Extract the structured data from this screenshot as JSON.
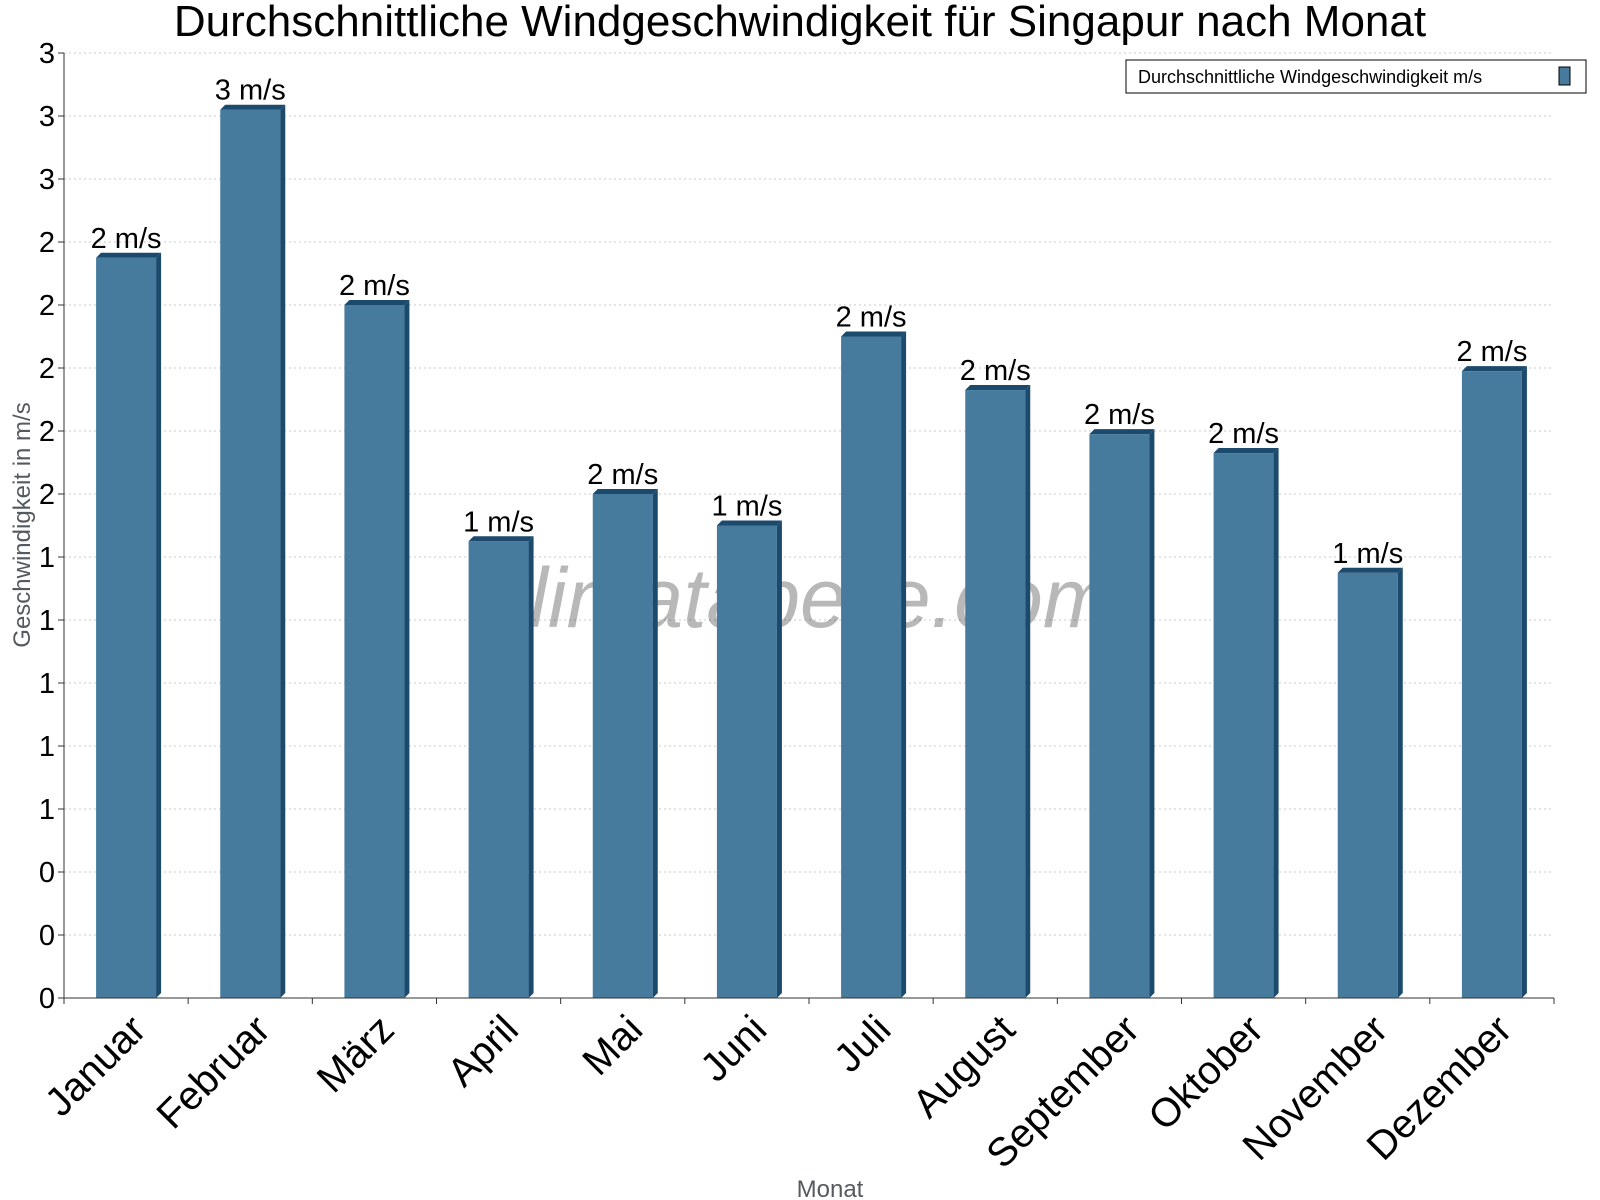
{
  "title": "Durchschnittliche Windgeschwindigkeit für Singapur nach Monat",
  "watermark": "klimatabelle.com",
  "colors": {
    "bar": "#467b9e",
    "bar_side": "#1c4a6c",
    "bar_top": "#1c4a6c"
  },
  "chart_data": {
    "type": "bar",
    "title": "Durchschnittliche Windgeschwindigkeit für Singapur nach Monat",
    "xlabel": "Monat",
    "ylabel": "Geschwindigkeit in m/s",
    "categories": [
      "Januar",
      "Februar",
      "März",
      "April",
      "Mai",
      "Juni",
      "Juli",
      "August",
      "September",
      "Oktober",
      "November",
      "Dezember"
    ],
    "series": [
      {
        "name": "Durchschnittliche Windgeschwindigkeit m/s",
        "values": [
          2.35,
          2.82,
          2.2,
          1.45,
          1.6,
          1.5,
          2.1,
          1.93,
          1.79,
          1.73,
          1.35,
          1.99
        ],
        "data_labels": [
          "2 m/s",
          "3 m/s",
          "2 m/s",
          "1 m/s",
          "2 m/s",
          "1 m/s",
          "2 m/s",
          "2 m/s",
          "2 m/s",
          "2 m/s",
          "1 m/s",
          "2 m/s"
        ]
      }
    ],
    "yticks": [
      0,
      0.2,
      0.4,
      0.6,
      0.8,
      1.0,
      1.2,
      1.4,
      1.6,
      1.8,
      2.0,
      2.2,
      2.4,
      2.6,
      2.8,
      3.0
    ],
    "ytick_labels": [
      "0",
      "0",
      "0",
      "1",
      "1",
      "1",
      "1",
      "1",
      "2",
      "2",
      "2",
      "2",
      "2",
      "3",
      "3",
      "3"
    ],
    "ylim": [
      0,
      3.0
    ],
    "grid": true,
    "legend_position": "top-right"
  }
}
